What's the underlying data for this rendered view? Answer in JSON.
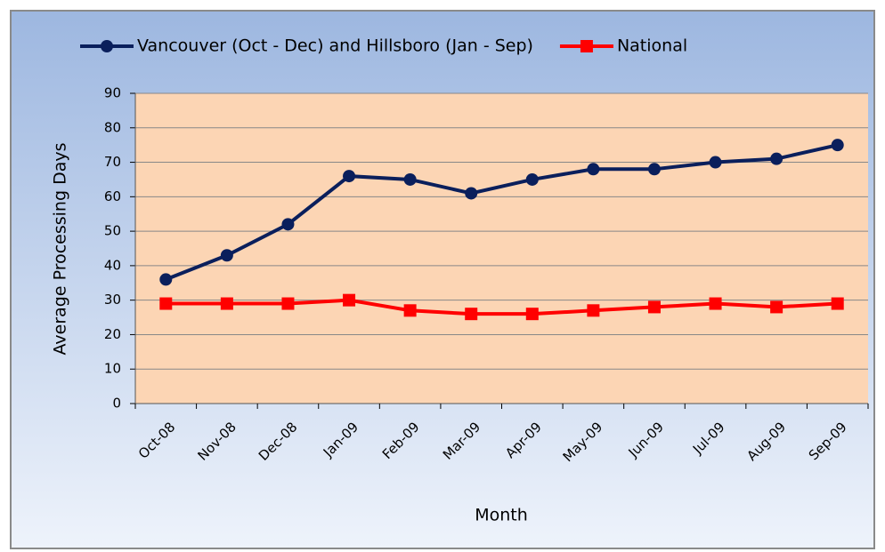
{
  "chart_data": {
    "type": "line",
    "categories": [
      "Oct-08",
      "Nov-08",
      "Dec-08",
      "Jan-09",
      "Feb-09",
      "Mar-09",
      "Apr-09",
      "May-09",
      "Jun-09",
      "Jul-09",
      "Aug-09",
      "Sep-09"
    ],
    "series": [
      {
        "name": "Vancouver (Oct - Dec) and Hillsboro (Jan - Sep)",
        "color": "#0a1f5c",
        "marker": "circle",
        "values": [
          36,
          43,
          52,
          66,
          65,
          61,
          65,
          68,
          68,
          70,
          71,
          75
        ]
      },
      {
        "name": "National",
        "color": "#ff0000",
        "marker": "square",
        "values": [
          29,
          29,
          29,
          30,
          27,
          26,
          26,
          27,
          28,
          29,
          28,
          29
        ]
      }
    ],
    "ylabel": "Average Processing Days",
    "xlabel": "Month",
    "ylim": [
      0,
      90
    ],
    "yticks": [
      0,
      10,
      20,
      30,
      40,
      50,
      60,
      70,
      80,
      90
    ],
    "grid": true,
    "legend": "top"
  }
}
